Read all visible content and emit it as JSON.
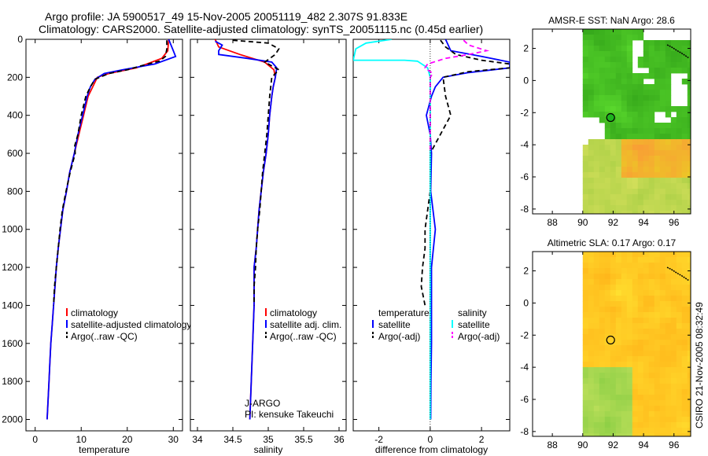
{
  "figure": {
    "title_line1": "Argo profile: JA 5900517_49 15-Nov-2005 20051119_482 2.307S 91.833E",
    "title_line2": "Climatology: CARS2000. Satellite-adjusted climatology: synTS_20051115.nc (0.45d earlier)",
    "side_label": "CSIRO 21-Nov-2005 08:32:49"
  },
  "chart_data": [
    {
      "id": "temperature",
      "type": "line",
      "xlabel": "temperature",
      "ylabel": "",
      "xlim": [
        -2,
        32
      ],
      "ylim": [
        2060,
        0
      ],
      "xticks": [
        0,
        10,
        20,
        30
      ],
      "yticks": [
        0,
        200,
        400,
        600,
        800,
        1000,
        1200,
        1400,
        1600,
        1800,
        2000
      ],
      "legend": [
        "climatology",
        "satellite-adjusted climatology",
        "Argo(..raw -QC)"
      ],
      "series": [
        {
          "name": "climatology",
          "color": "#ff0000",
          "points": [
            [
              29,
              0
            ],
            [
              28.8,
              60
            ],
            [
              27.5,
              100
            ],
            [
              22,
              150
            ],
            [
              16,
              180
            ],
            [
              13.5,
              200
            ],
            [
              12.5,
              250
            ],
            [
              11.5,
              300
            ],
            [
              10.5,
              400
            ],
            [
              9.5,
              500
            ],
            [
              8.5,
              600
            ],
            [
              7.5,
              700
            ],
            [
              6.8,
              800
            ],
            [
              6,
              900
            ],
            [
              5.5,
              1000
            ],
            [
              5,
              1100
            ],
            [
              4.6,
              1200
            ],
            [
              4.3,
              1300
            ],
            [
              4,
              1400
            ],
            [
              3.7,
              1500
            ],
            [
              3.4,
              1600
            ],
            [
              3.2,
              1700
            ],
            [
              3,
              1800
            ],
            [
              2.8,
              1900
            ],
            [
              2.6,
              2000
            ]
          ]
        },
        {
          "name": "satellite-adjusted climatology",
          "color": "#0000ff",
          "points": [
            [
              29,
              0
            ],
            [
              30,
              60
            ],
            [
              30.5,
              90
            ],
            [
              26,
              130
            ],
            [
              19,
              160
            ],
            [
              15,
              180
            ],
            [
              13,
              210
            ],
            [
              12,
              250
            ],
            [
              11.3,
              300
            ],
            [
              10.3,
              400
            ],
            [
              9.3,
              500
            ],
            [
              8.5,
              600
            ],
            [
              7.5,
              700
            ],
            [
              6.8,
              800
            ],
            [
              6,
              900
            ],
            [
              5.5,
              1000
            ],
            [
              5,
              1100
            ],
            [
              4.6,
              1200
            ],
            [
              4.3,
              1300
            ],
            [
              4,
              1400
            ],
            [
              3.7,
              1500
            ],
            [
              3.4,
              1600
            ],
            [
              3.2,
              1700
            ],
            [
              3,
              1800
            ],
            [
              2.8,
              1900
            ],
            [
              2.6,
              2000
            ]
          ]
        },
        {
          "name": "Argo(..raw -QC)",
          "color": "#000000",
          "dashed": true,
          "points": [
            [
              28.6,
              5
            ],
            [
              28.6,
              50
            ],
            [
              28.3,
              90
            ],
            [
              27,
              115
            ],
            [
              23,
              140
            ],
            [
              20,
              160
            ],
            [
              16,
              180
            ],
            [
              13,
              210
            ],
            [
              12,
              250
            ],
            [
              11,
              300
            ],
            [
              10,
              400
            ],
            [
              9.3,
              500
            ],
            [
              8.6,
              560
            ],
            [
              8.7,
              600
            ],
            [
              7.6,
              700
            ],
            [
              6.7,
              800
            ],
            [
              5.9,
              900
            ],
            [
              5.4,
              1000
            ],
            [
              5,
              1100
            ],
            [
              4.6,
              1200
            ],
            [
              4.2,
              1300
            ],
            [
              4,
              1400
            ]
          ]
        }
      ]
    },
    {
      "id": "salinity",
      "type": "line",
      "xlabel": "salinity",
      "ylabel": "",
      "xlim": [
        33.9,
        36.1
      ],
      "ylim": [
        2060,
        0
      ],
      "xticks": [
        34,
        34.5,
        35,
        35.5,
        36
      ],
      "yticks": [
        0,
        200,
        400,
        600,
        800,
        1000,
        1200,
        1400,
        1600,
        1800,
        2000
      ],
      "legend": [
        "climatology",
        "satellite adj. clim.",
        "Argo(..raw -QC)"
      ],
      "annotations": [
        "J-ARGO",
        "PI: kensuke Takeuchi"
      ],
      "series": [
        {
          "name": "climatology",
          "color": "#ff0000",
          "points": [
            [
              34.25,
              0
            ],
            [
              34.3,
              40
            ],
            [
              34.6,
              80
            ],
            [
              34.95,
              120
            ],
            [
              35.08,
              160
            ],
            [
              35.1,
              200
            ],
            [
              35.07,
              250
            ],
            [
              35.05,
              300
            ],
            [
              35.02,
              400
            ],
            [
              35.0,
              500
            ],
            [
              34.97,
              600
            ],
            [
              34.93,
              700
            ],
            [
              34.9,
              800
            ],
            [
              34.87,
              900
            ],
            [
              34.85,
              1000
            ],
            [
              34.83,
              1100
            ],
            [
              34.8,
              1200
            ],
            [
              34.8,
              1300
            ],
            [
              34.8,
              1400
            ],
            [
              34.79,
              1500
            ],
            [
              34.78,
              1600
            ],
            [
              34.77,
              1700
            ],
            [
              34.76,
              1800
            ],
            [
              34.75,
              1900
            ],
            [
              34.74,
              2000
            ]
          ]
        },
        {
          "name": "satellite adj. clim.",
          "color": "#0000ff",
          "points": [
            [
              34.25,
              10
            ],
            [
              34.35,
              30
            ],
            [
              34.3,
              60
            ],
            [
              34.3,
              80
            ],
            [
              34.7,
              100
            ],
            [
              35.05,
              120
            ],
            [
              35.12,
              150
            ],
            [
              35.1,
              200
            ],
            [
              35.07,
              250
            ],
            [
              35.05,
              300
            ],
            [
              35.02,
              400
            ],
            [
              35.0,
              500
            ],
            [
              34.97,
              600
            ],
            [
              34.93,
              700
            ],
            [
              34.9,
              800
            ],
            [
              34.87,
              900
            ],
            [
              34.85,
              1000
            ],
            [
              34.83,
              1100
            ],
            [
              34.8,
              1200
            ],
            [
              34.8,
              1300
            ],
            [
              34.8,
              1400
            ],
            [
              34.79,
              1500
            ],
            [
              34.78,
              1600
            ],
            [
              34.77,
              1700
            ],
            [
              34.76,
              1800
            ],
            [
              34.75,
              1900
            ],
            [
              34.74,
              2000
            ]
          ]
        },
        {
          "name": "Argo(..raw -QC)",
          "color": "#000000",
          "dashed": true,
          "points": [
            [
              34.5,
              5
            ],
            [
              35.0,
              20
            ],
            [
              35.15,
              50
            ],
            [
              35.1,
              80
            ],
            [
              34.95,
              120
            ],
            [
              35.15,
              160
            ],
            [
              35.05,
              200
            ],
            [
              35.02,
              300
            ],
            [
              35.0,
              400
            ],
            [
              34.98,
              500
            ],
            [
              34.95,
              600
            ],
            [
              34.92,
              700
            ],
            [
              34.9,
              800
            ],
            [
              34.88,
              900
            ],
            [
              34.85,
              1000
            ],
            [
              34.83,
              1100
            ],
            [
              34.82,
              1200
            ],
            [
              34.8,
              1300
            ],
            [
              34.8,
              1400
            ]
          ]
        }
      ]
    },
    {
      "id": "difference",
      "type": "line",
      "xlabel": "difference from climatology",
      "ylabel": "",
      "xlim": [
        -3,
        3.1
      ],
      "ylim": [
        2060,
        0
      ],
      "xticks": [
        -2,
        0,
        2
      ],
      "yticks": [
        0,
        200,
        400,
        600,
        800,
        1000,
        1200,
        1400,
        1600,
        1800,
        2000
      ],
      "legend_titles": [
        "temperature",
        "salinity"
      ],
      "legend_left": [
        "satellite",
        "Argo(-adj)"
      ],
      "legend_right": [
        "satellite",
        "Argo(-adj)"
      ],
      "series": [
        {
          "name": "temperature satellite",
          "color": "#0000ff",
          "points": [
            [
              0.6,
              0
            ],
            [
              0.8,
              60
            ],
            [
              2,
              90
            ],
            [
              3.1,
              120
            ],
            [
              3.1,
              150
            ],
            [
              1.5,
              175
            ],
            [
              0.5,
              200
            ],
            [
              0.2,
              250
            ],
            [
              0.05,
              300
            ],
            [
              -0.15,
              400
            ],
            [
              0,
              500
            ],
            [
              0.05,
              600
            ],
            [
              0.02,
              800
            ],
            [
              0.2,
              1000
            ],
            [
              0.05,
              1200
            ],
            [
              0.05,
              1400
            ],
            [
              0.05,
              1600
            ],
            [
              0.03,
              1800
            ],
            [
              0.02,
              2000
            ]
          ]
        },
        {
          "name": "temperature Argo(-adj)",
          "color": "#000000",
          "dashed": true,
          "points": [
            [
              0.4,
              5
            ],
            [
              0.6,
              40
            ],
            [
              1,
              80
            ],
            [
              2,
              110
            ],
            [
              3.1,
              130
            ],
            [
              3.1,
              150
            ],
            [
              1.5,
              170
            ],
            [
              0.5,
              200
            ],
            [
              0.6,
              300
            ],
            [
              0.8,
              400
            ],
            [
              0.4,
              500
            ],
            [
              0,
              600
            ],
            [
              0,
              800
            ],
            [
              -0.2,
              1000
            ],
            [
              -0.2,
              1100
            ],
            [
              -0.3,
              1200
            ],
            [
              -0.35,
              1300
            ],
            [
              -0.2,
              1400
            ]
          ]
        },
        {
          "name": "salinity satellite",
          "color": "#00ffff",
          "points": [
            [
              -1.5,
              0
            ],
            [
              -2.5,
              20
            ],
            [
              -2.9,
              50
            ],
            [
              -3,
              110
            ],
            [
              -1,
              110
            ],
            [
              -0.5,
              115
            ],
            [
              -0.1,
              150
            ],
            [
              0,
              200
            ],
            [
              0,
              300
            ],
            [
              0,
              500
            ],
            [
              0,
              800
            ],
            [
              0,
              1000
            ],
            [
              0,
              1200
            ],
            [
              0,
              1400
            ],
            [
              0,
              1600
            ],
            [
              0,
              1800
            ],
            [
              0,
              2000
            ]
          ]
        },
        {
          "name": "salinity Argo(-adj)",
          "color": "#ff00ff",
          "dashed": true,
          "points": [
            [
              1.3,
              5
            ],
            [
              1.5,
              30
            ],
            [
              2.2,
              60
            ],
            [
              1.5,
              80
            ],
            [
              0.6,
              100
            ],
            [
              -0.1,
              130
            ],
            [
              -0.2,
              150
            ],
            [
              0.1,
              180
            ],
            [
              0,
              200
            ],
            [
              0,
              300
            ],
            [
              0,
              400
            ],
            [
              0,
              500
            ],
            [
              0,
              600
            ]
          ]
        }
      ]
    },
    {
      "id": "sst_map",
      "type": "heatmap",
      "title": "AMSR-E SST: NaN Argo: 28.6",
      "xlim": [
        86.7,
        97.1
      ],
      "ylim": [
        -8.3,
        3.2
      ],
      "xticks": [
        88,
        90,
        92,
        94,
        96
      ],
      "yticks": [
        -8,
        -6,
        -4,
        -2,
        0,
        2
      ],
      "data_extent_x": [
        90,
        97
      ],
      "marker": [
        91.833,
        -2.307
      ]
    },
    {
      "id": "sla_map",
      "type": "heatmap",
      "title": "Altimetric SLA: 0.17 Argo: 0.17",
      "xlim": [
        86.7,
        97.1
      ],
      "ylim": [
        -8.3,
        3.2
      ],
      "xticks": [
        88,
        90,
        92,
        94,
        96
      ],
      "yticks": [
        -8,
        -6,
        -4,
        -2,
        0,
        2
      ],
      "data_extent_x": [
        90,
        97
      ],
      "marker": [
        91.833,
        -2.307
      ]
    }
  ]
}
